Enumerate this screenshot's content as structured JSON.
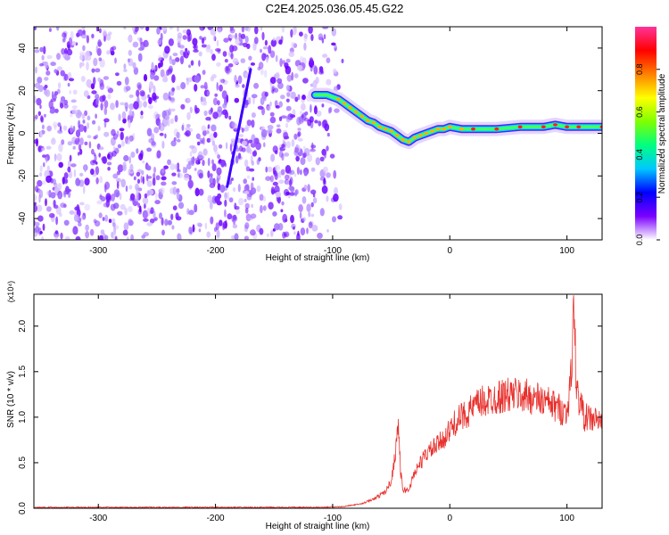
{
  "title": "C2E4.2025.036.05.45.G22",
  "chart_data": [
    {
      "type": "heatmap",
      "xlabel": "Height of straight line (km)",
      "ylabel": "Frequency (Hz)",
      "xlim": [
        -355,
        130
      ],
      "ylim": [
        -50,
        50
      ],
      "xticks": [
        -300,
        -200,
        -100,
        0,
        100
      ],
      "yticks": [
        -40,
        -20,
        0,
        20,
        40
      ],
      "colorbar": {
        "label": "Normalized spectral amplitude",
        "range": [
          0,
          1
        ],
        "ticks": [
          "0.0",
          "0.2",
          "0.4",
          "0.6",
          "0.8"
        ],
        "colormap": [
          "#ffffff",
          "#7b00ff",
          "#0000ff",
          "#00c8ff",
          "#00ff80",
          "#80ff00",
          "#ffff00",
          "#ff8000",
          "#ff0000",
          "#ff3399"
        ]
      },
      "noise_region_x": [
        -355,
        -88
      ],
      "oblique_streak": {
        "x": [
          -190,
          -170
        ],
        "y": [
          -25,
          30
        ]
      },
      "ridge": {
        "x": [
          -115,
          -105,
          -100,
          -95,
          -90,
          -85,
          -80,
          -75,
          -70,
          -65,
          -60,
          -55,
          -50,
          -45,
          -40,
          -35,
          -30,
          -25,
          -20,
          -15,
          -10,
          -5,
          0,
          10,
          20,
          40,
          60,
          80,
          90,
          100,
          110,
          130
        ],
        "y": [
          18,
          18,
          17,
          16,
          14,
          12,
          10,
          8,
          6,
          5,
          3,
          2,
          1,
          -1,
          -3,
          -4,
          -2,
          -1,
          0,
          1,
          2,
          2,
          3,
          2,
          2,
          2,
          3,
          3,
          4,
          3,
          3,
          3
        ]
      }
    },
    {
      "type": "line",
      "xlabel": "Height of straight line (km)",
      "ylabel": "SNR (10 * v/v)",
      "yscale_note": "(x10⁴)",
      "xlim": [
        -355,
        130
      ],
      "ylim": [
        0,
        2.35
      ],
      "xticks": [
        -300,
        -200,
        -100,
        0,
        100
      ],
      "yticks": [
        "0.0",
        "0.5",
        "1.0",
        "1.5",
        "2.0"
      ],
      "series": [
        {
          "color": "#e8302c",
          "x": [
            -355,
            -300,
            -250,
            -200,
            -150,
            -110,
            -90,
            -75,
            -65,
            -55,
            -50,
            -47,
            -44,
            -42,
            -40,
            -35,
            -30,
            -20,
            -10,
            0,
            5,
            15,
            25,
            40,
            55,
            70,
            85,
            100,
            104,
            106,
            108,
            115,
            130
          ],
          "y": [
            0.01,
            0.01,
            0.01,
            0.01,
            0.01,
            0.01,
            0.02,
            0.05,
            0.1,
            0.18,
            0.3,
            0.55,
            0.95,
            0.4,
            0.2,
            0.2,
            0.4,
            0.6,
            0.7,
            0.85,
            0.95,
            1.05,
            1.15,
            1.22,
            1.25,
            1.22,
            1.15,
            1.05,
            1.5,
            2.3,
            1.3,
            1.0,
            0.95
          ]
        }
      ]
    }
  ]
}
